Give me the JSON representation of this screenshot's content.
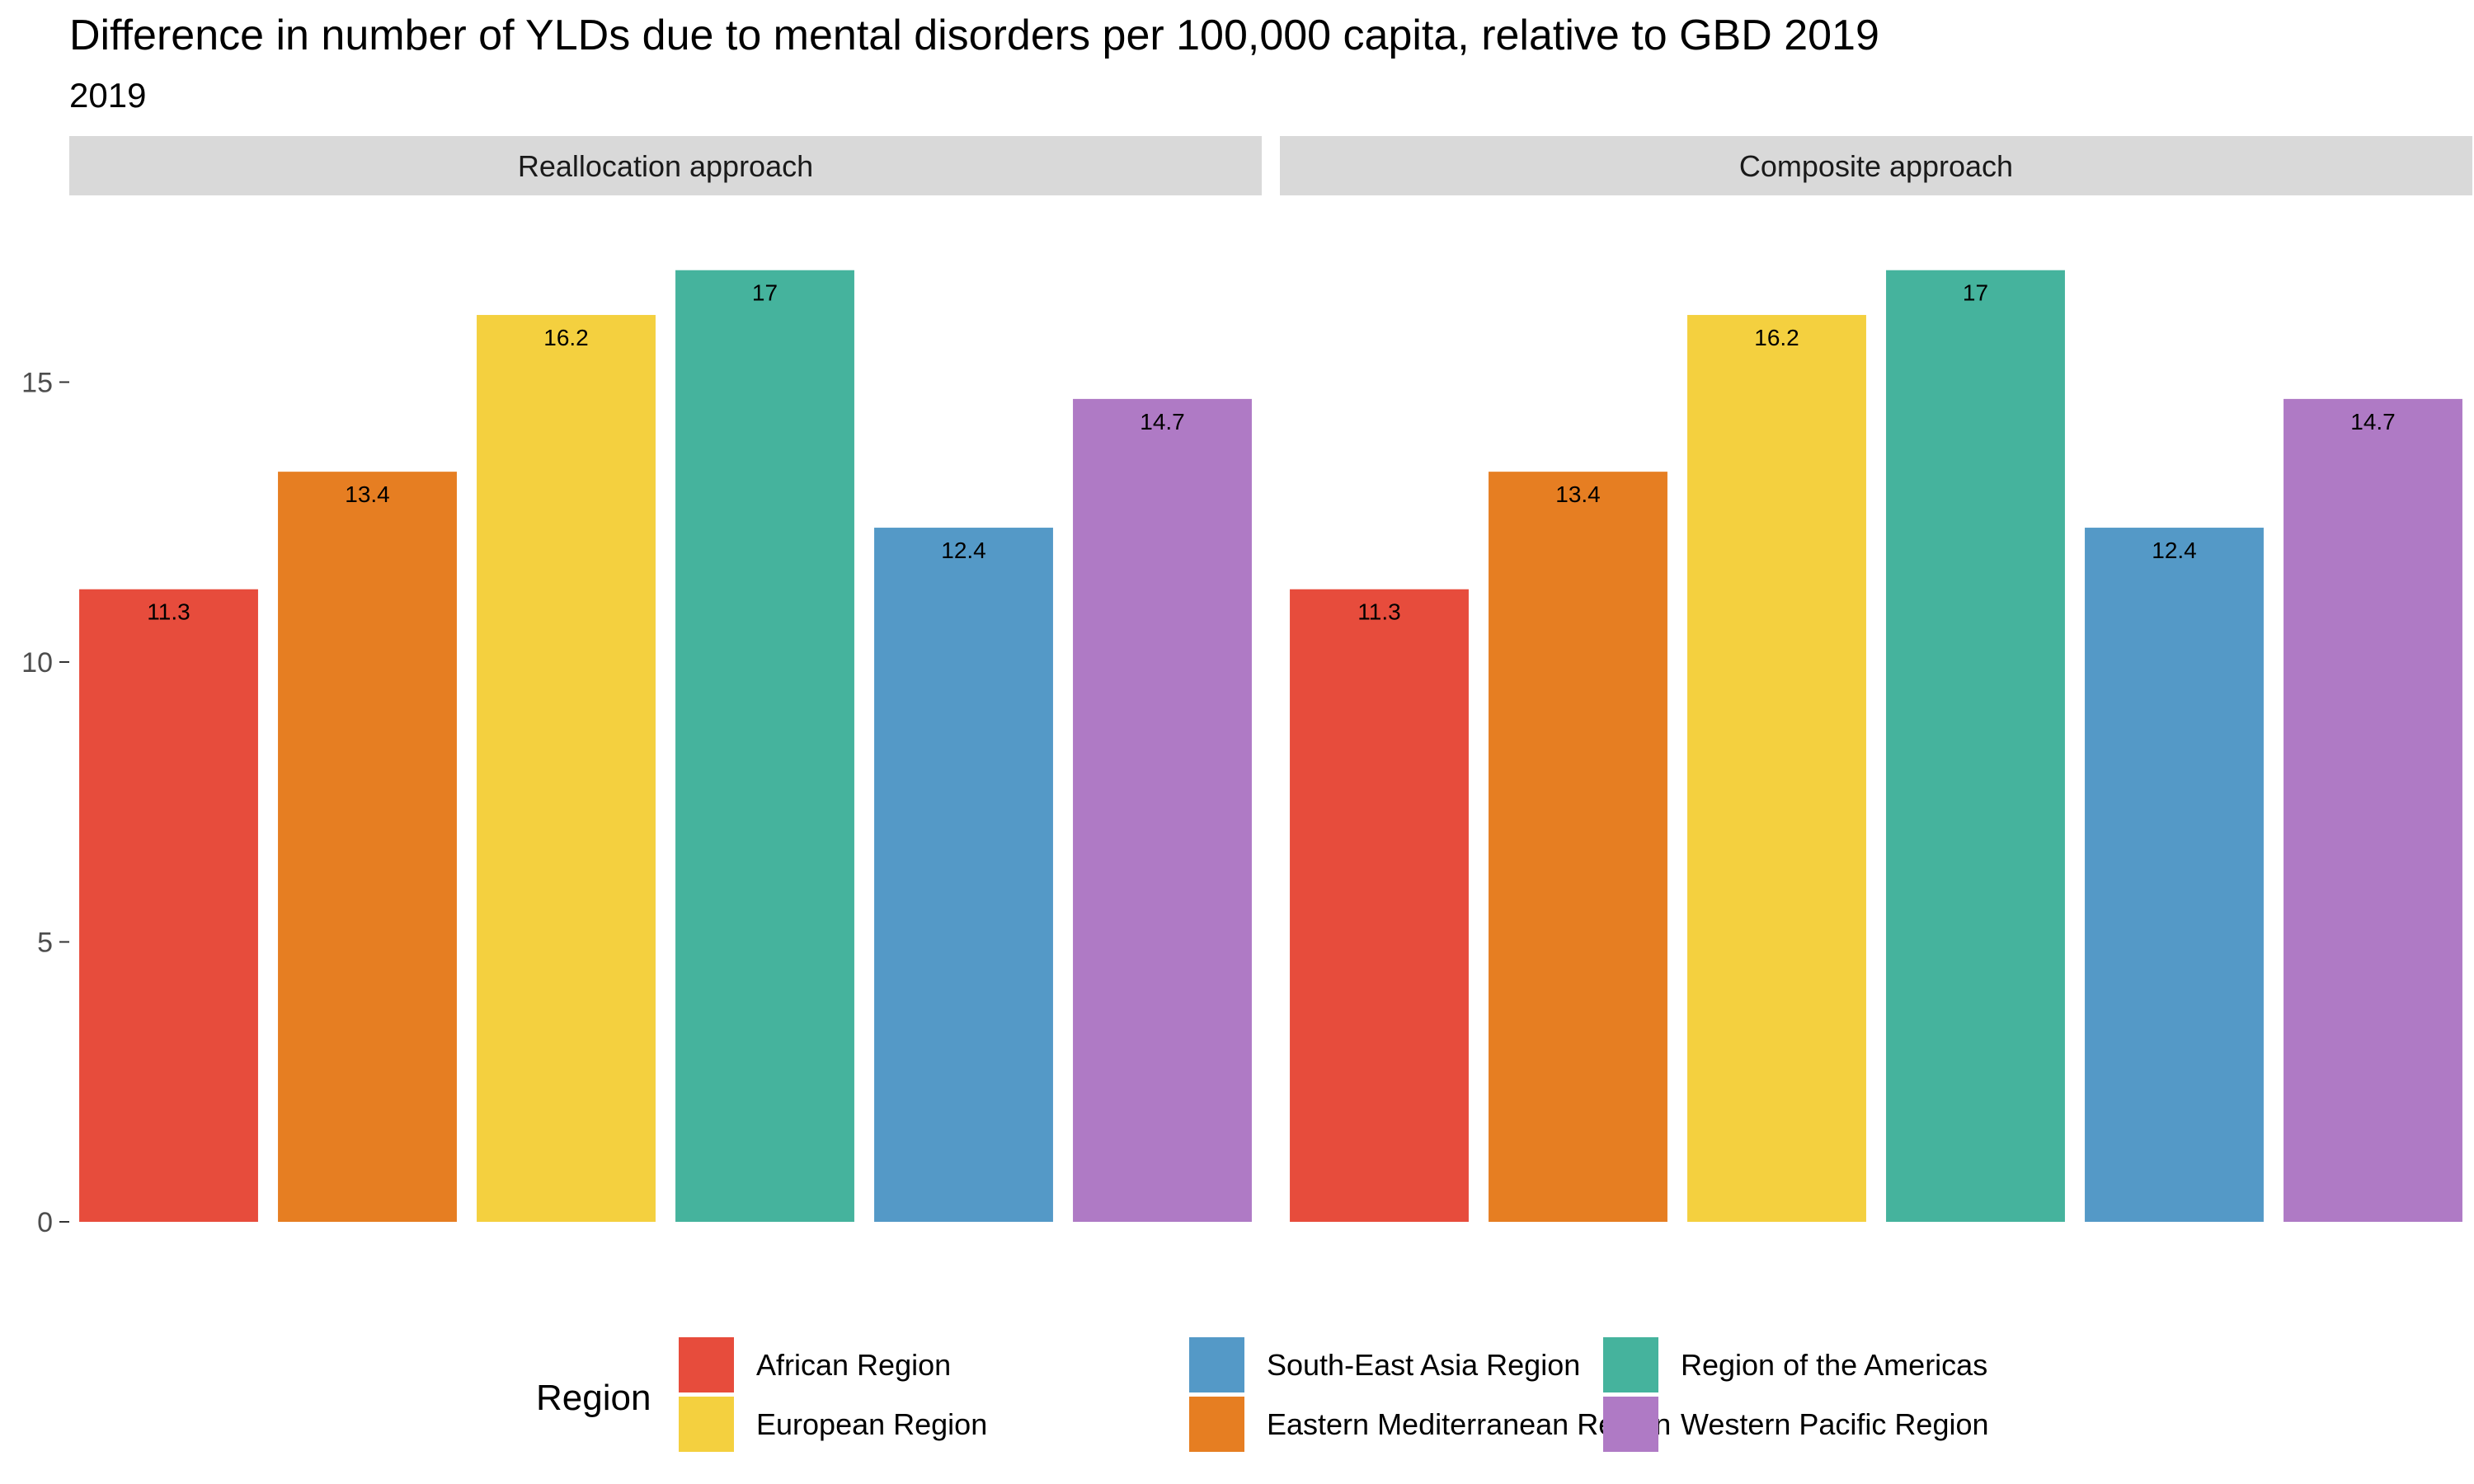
{
  "chart_data": {
    "type": "bar",
    "title": "Difference in number of YLDs due to mental disorders per 100,000 capita, relative to GBD 2019",
    "subtitle": "2019",
    "xlabel": "",
    "ylabel": "",
    "ylim": [
      0,
      17.85
    ],
    "yticks": [
      0,
      5,
      10,
      15
    ],
    "grid": false,
    "legend_title": "Region",
    "legend_position": "bottom",
    "categories": [
      "African Region",
      "Eastern Mediterranean Region",
      "European Region",
      "Region of the Americas",
      "South-East Asia Region",
      "Western Pacific Region"
    ],
    "colors": [
      "#E74C3C",
      "#E67E22",
      "#F4D03F",
      "#45B39D",
      "#5499C7",
      "#AF7AC5"
    ],
    "legend_order": [
      0,
      2,
      4,
      1,
      3,
      5
    ],
    "panels": [
      {
        "name": "Reallocation approach",
        "values": [
          11.3,
          13.4,
          16.2,
          17,
          12.4,
          14.7
        ]
      },
      {
        "name": "Composite approach",
        "values": [
          11.3,
          13.4,
          16.2,
          17,
          12.4,
          14.7
        ]
      }
    ]
  }
}
